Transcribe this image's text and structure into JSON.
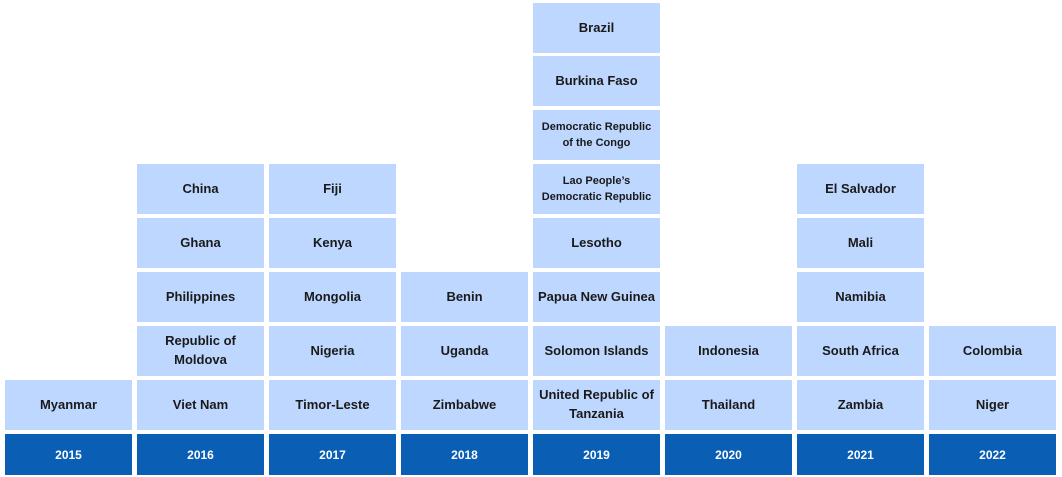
{
  "diagram": {
    "columns": [
      {
        "year": "2015",
        "countries": [
          "Myanmar"
        ]
      },
      {
        "year": "2016",
        "countries": [
          "Viet Nam",
          "Republic of Moldova",
          "Philippines",
          "Ghana",
          "China"
        ]
      },
      {
        "year": "2017",
        "countries": [
          "Timor-Leste",
          "Nigeria",
          "Mongolia",
          "Kenya",
          "Fiji"
        ]
      },
      {
        "year": "2018",
        "countries": [
          "Zimbabwe",
          "Uganda",
          "Benin"
        ]
      },
      {
        "year": "2019",
        "countries": [
          "United Republic of Tanzania",
          "Solomon Islands",
          "Papua New Guinea",
          "Lesotho",
          "Lao People’s Democratic Republic",
          "Democratic Republic of the Congo",
          "Burkina Faso",
          "Brazil"
        ]
      },
      {
        "year": "2020",
        "countries": [
          "Thailand",
          "Indonesia"
        ]
      },
      {
        "year": "2021",
        "countries": [
          "Zambia",
          "South Africa",
          "Namibia",
          "Mali",
          "El Salvador"
        ]
      },
      {
        "year": "2022",
        "countries": [
          "Niger",
          "Colombia"
        ]
      }
    ]
  }
}
